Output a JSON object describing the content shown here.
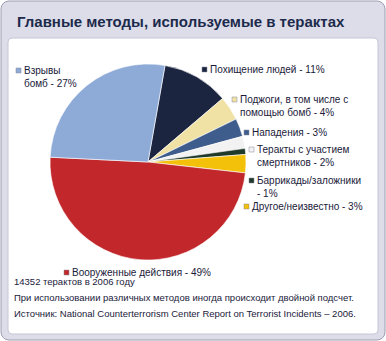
{
  "chart_data": {
    "type": "pie",
    "title": "Главные методы, используемые в терактах",
    "categories": [
      "Похищение людей - 11%",
      "Поджоги, в том числе с\nпомощью бомб - 4%",
      "Нападения - 3%",
      "Теракты с участием\nсмертников - 2%",
      "Баррикады/заложники\n- 1%",
      "Другое/неизвестно - 3%",
      "Вооруженные действия - 49%",
      "Взрывы\nбомб - 27%"
    ],
    "values": [
      11,
      4,
      3,
      2,
      1,
      3,
      49,
      27
    ],
    "colors": [
      "#1b2540",
      "#f0e2a4",
      "#3e5d8c",
      "#f2f2f2",
      "#1f3a2b",
      "#f3c10a",
      "#c1272b",
      "#8eabd8"
    ],
    "notes": [
      "14352 терактов в 2006 году",
      "При использовании различных методов иногда происходит двойной подсчет.",
      "Источник: National Counterterrorism Center Report on Terrorist Incidents – 2006."
    ]
  }
}
